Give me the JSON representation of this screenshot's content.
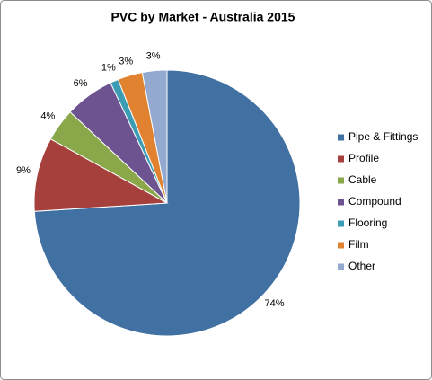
{
  "chart_data": {
    "type": "pie",
    "title": "PVC by Market - Australia 2015",
    "categories": [
      "Pipe & Fittings",
      "Profile",
      "Cable",
      "Compound",
      "Flooring",
      "Film",
      "Other"
    ],
    "values": [
      74,
      9,
      4,
      6,
      1,
      3,
      3
    ],
    "value_labels": [
      "74%",
      "9%",
      "4%",
      "6%",
      "1%",
      "3%",
      "3%"
    ],
    "colors": [
      "#4170a2",
      "#a6403c",
      "#8aa74a",
      "#6e5391",
      "#3c9cb4",
      "#e0822f",
      "#93a9d0"
    ],
    "legend": "right"
  }
}
